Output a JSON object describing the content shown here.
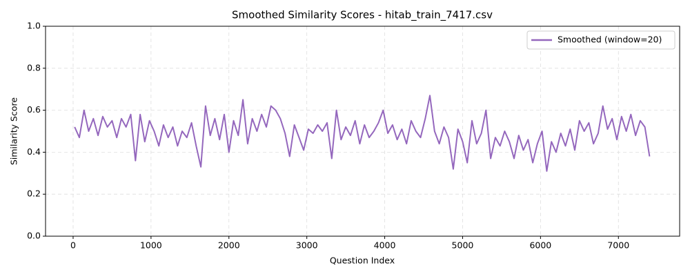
{
  "chart_data": {
    "type": "line",
    "title": "Smoothed Similarity Scores - hitab_train_7417.csv",
    "xlabel": "Question Index",
    "ylabel": "Similarity Score",
    "x": [
      20,
      80,
      140,
      200,
      260,
      320,
      380,
      440,
      500,
      560,
      620,
      680,
      740,
      800,
      860,
      920,
      980,
      1040,
      1100,
      1160,
      1220,
      1280,
      1340,
      1400,
      1460,
      1520,
      1580,
      1640,
      1700,
      1760,
      1820,
      1880,
      1940,
      2000,
      2060,
      2120,
      2180,
      2240,
      2300,
      2360,
      2420,
      2480,
      2540,
      2600,
      2660,
      2720,
      2780,
      2840,
      2900,
      2960,
      3020,
      3080,
      3140,
      3200,
      3260,
      3320,
      3380,
      3440,
      3500,
      3560,
      3620,
      3680,
      3740,
      3800,
      3860,
      3920,
      3980,
      4040,
      4100,
      4160,
      4220,
      4280,
      4340,
      4400,
      4460,
      4520,
      4580,
      4640,
      4700,
      4760,
      4820,
      4880,
      4940,
      5000,
      5060,
      5120,
      5180,
      5240,
      5300,
      5360,
      5420,
      5480,
      5540,
      5600,
      5660,
      5720,
      5780,
      5840,
      5900,
      5960,
      6020,
      6080,
      6140,
      6200,
      6260,
      6320,
      6380,
      6440,
      6500,
      6560,
      6620,
      6680,
      6740,
      6800,
      6860,
      6920,
      6980,
      7040,
      7100,
      7160,
      7220,
      7280,
      7340,
      7400
    ],
    "series": [
      {
        "name": "Smoothed (window=20)",
        "color": "#9467bd",
        "values": [
          0.52,
          0.47,
          0.6,
          0.5,
          0.56,
          0.48,
          0.57,
          0.52,
          0.55,
          0.47,
          0.56,
          0.52,
          0.58,
          0.36,
          0.58,
          0.45,
          0.55,
          0.5,
          0.43,
          0.53,
          0.47,
          0.52,
          0.43,
          0.5,
          0.47,
          0.54,
          0.43,
          0.33,
          0.62,
          0.48,
          0.56,
          0.46,
          0.58,
          0.4,
          0.55,
          0.48,
          0.65,
          0.44,
          0.56,
          0.5,
          0.58,
          0.52,
          0.62,
          0.6,
          0.56,
          0.49,
          0.38,
          0.53,
          0.47,
          0.41,
          0.51,
          0.49,
          0.53,
          0.5,
          0.54,
          0.37,
          0.6,
          0.46,
          0.52,
          0.48,
          0.55,
          0.44,
          0.53,
          0.47,
          0.5,
          0.54,
          0.6,
          0.49,
          0.53,
          0.46,
          0.51,
          0.44,
          0.55,
          0.5,
          0.47,
          0.56,
          0.67,
          0.5,
          0.44,
          0.52,
          0.47,
          0.32,
          0.51,
          0.45,
          0.35,
          0.55,
          0.44,
          0.49,
          0.6,
          0.37,
          0.47,
          0.43,
          0.5,
          0.45,
          0.37,
          0.48,
          0.41,
          0.46,
          0.35,
          0.44,
          0.5,
          0.31,
          0.45,
          0.4,
          0.49,
          0.43,
          0.51,
          0.41,
          0.55,
          0.5,
          0.54,
          0.44,
          0.49,
          0.62,
          0.51,
          0.56,
          0.46,
          0.57,
          0.5,
          0.58,
          0.48,
          0.55,
          0.52,
          0.38
        ]
      }
    ],
    "xlim": [
      -354,
      7786
    ],
    "ylim": [
      0,
      1
    ],
    "xticks": [
      0,
      1000,
      2000,
      3000,
      4000,
      5000,
      6000,
      7000
    ],
    "yticks": [
      {
        "value": 0,
        "label": "0.0"
      },
      {
        "value": 0.2,
        "label": "0.2"
      },
      {
        "value": 0.4,
        "label": "0.4"
      },
      {
        "value": 0.6,
        "label": "0.6"
      },
      {
        "value": 0.8,
        "label": "0.8"
      },
      {
        "value": 1,
        "label": "1.0"
      }
    ],
    "grid": true,
    "legend": "upper right"
  }
}
